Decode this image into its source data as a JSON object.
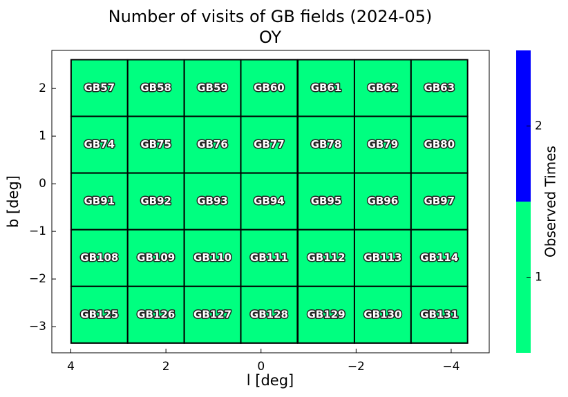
{
  "chart_data": {
    "type": "heatmap",
    "title": "Number of visits of GB fields (2024-05)",
    "subtitle": "OY",
    "xlabel": "l [deg]",
    "ylabel": "b [deg]",
    "x": [
      3.4,
      2.21,
      1.02,
      -0.17,
      -1.37,
      -2.56,
      -3.75,
      3.4,
      2.21,
      1.02,
      -0.17,
      -1.37,
      -2.56,
      -3.75,
      3.4,
      2.21,
      1.02,
      -0.17,
      -1.37,
      -2.56,
      -3.75,
      3.4,
      2.21,
      1.02,
      -0.17,
      -1.37,
      -2.56,
      -3.75,
      3.4,
      2.21,
      1.02,
      -0.17,
      -1.37,
      -2.56,
      -3.75
    ],
    "y": [
      2.01,
      2.01,
      2.01,
      2.01,
      2.01,
      2.01,
      2.01,
      0.82,
      0.82,
      0.82,
      0.82,
      0.82,
      0.82,
      0.82,
      -0.37,
      -0.37,
      -0.37,
      -0.37,
      -0.37,
      -0.37,
      -0.37,
      -1.56,
      -1.56,
      -1.56,
      -1.56,
      -1.56,
      -1.56,
      -1.56,
      -2.75,
      -2.75,
      -2.75,
      -2.75,
      -2.75,
      -2.75,
      -2.75
    ],
    "values": [
      1,
      1,
      1,
      1,
      1,
      1,
      1,
      1,
      1,
      1,
      1,
      1,
      1,
      1,
      1,
      1,
      1,
      1,
      1,
      1,
      1,
      1,
      1,
      1,
      1,
      1,
      1,
      1,
      1,
      1,
      1,
      1,
      1,
      1,
      1
    ],
    "labels": [
      "GB57",
      "GB58",
      "GB59",
      "GB60",
      "GB61",
      "GB62",
      "GB63",
      "GB74",
      "GB75",
      "GB76",
      "GB77",
      "GB78",
      "GB79",
      "GB80",
      "GB91",
      "GB92",
      "GB93",
      "GB94",
      "GB95",
      "GB96",
      "GB97",
      "GB108",
      "GB109",
      "GB110",
      "GB111",
      "GB112",
      "GB113",
      "GB114",
      "GB125",
      "GB126",
      "GB127",
      "GB128",
      "GB129",
      "GB130",
      "GB131"
    ],
    "xlim": [
      4.4,
      -4.8
    ],
    "ylim": [
      -3.55,
      2.8
    ],
    "xticks": [
      4,
      2,
      0,
      {
        "value": -2,
        "label": "−2"
      },
      {
        "value": -4,
        "label": "−4"
      }
    ],
    "yticks": [
      2,
      1,
      0,
      {
        "value": -1,
        "label": "−1"
      },
      {
        "value": -2,
        "label": "−2"
      },
      {
        "value": -3,
        "label": "−3"
      }
    ],
    "colorbar": {
      "label": "Observed Times",
      "colors": [
        "#00ff80",
        "#0000ff"
      ],
      "boundaries": [
        0.5,
        1.5,
        2.5
      ],
      "ticks": [
        1,
        2
      ]
    }
  }
}
